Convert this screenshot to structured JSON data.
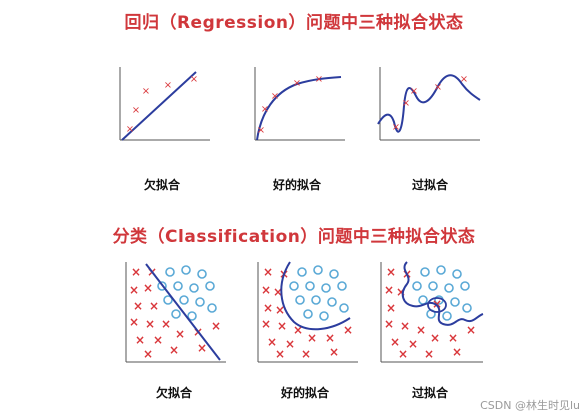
{
  "regression": {
    "title": "回归（Regression）问题中三种拟合状态",
    "labels": {
      "under": "欠拟合",
      "good": "好的拟合",
      "over": "过拟合"
    }
  },
  "classification": {
    "title": "分类（Classification）问题中三种拟合状态",
    "labels": {
      "under": "欠拟合",
      "good": "好的拟合",
      "over": "过拟合"
    }
  },
  "watermark": "CSDN @林生时见lu",
  "colors": {
    "title": "#d0373b",
    "curve": "#2c3d9e",
    "marker_x": "#d9373b",
    "marker_o": "#5aa9d6",
    "axis": "#555555"
  }
}
